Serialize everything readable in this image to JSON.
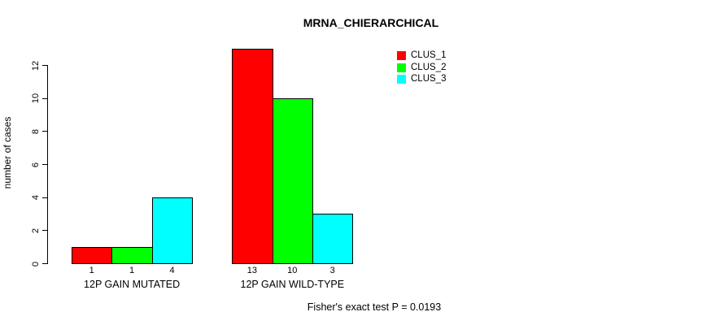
{
  "chart_data": {
    "type": "bar",
    "title": "MRNA_CHIERARCHICAL",
    "ylabel": "number of cases",
    "xlabel": "",
    "ylim": [
      0,
      13
    ],
    "yticks": [
      0,
      2,
      4,
      6,
      8,
      10,
      12
    ],
    "categories": [
      "12P GAIN MUTATED",
      "12P GAIN WILD-TYPE"
    ],
    "series": [
      {
        "name": "CLUS_1",
        "color": "#ff0000",
        "values": [
          1,
          13
        ]
      },
      {
        "name": "CLUS_2",
        "color": "#00ff00",
        "values": [
          1,
          10
        ]
      },
      {
        "name": "CLUS_3",
        "color": "#00ffff",
        "values": [
          4,
          3
        ]
      }
    ],
    "bar_value_labels": [
      [
        "1",
        "1",
        "4"
      ],
      [
        "13",
        "10",
        "3"
      ]
    ],
    "legend_position": "top-right",
    "grid": false,
    "annotation": "Fisher's exact test P = 0.0193",
    "axis_color": "#000000",
    "background_color": "#ffffff"
  }
}
